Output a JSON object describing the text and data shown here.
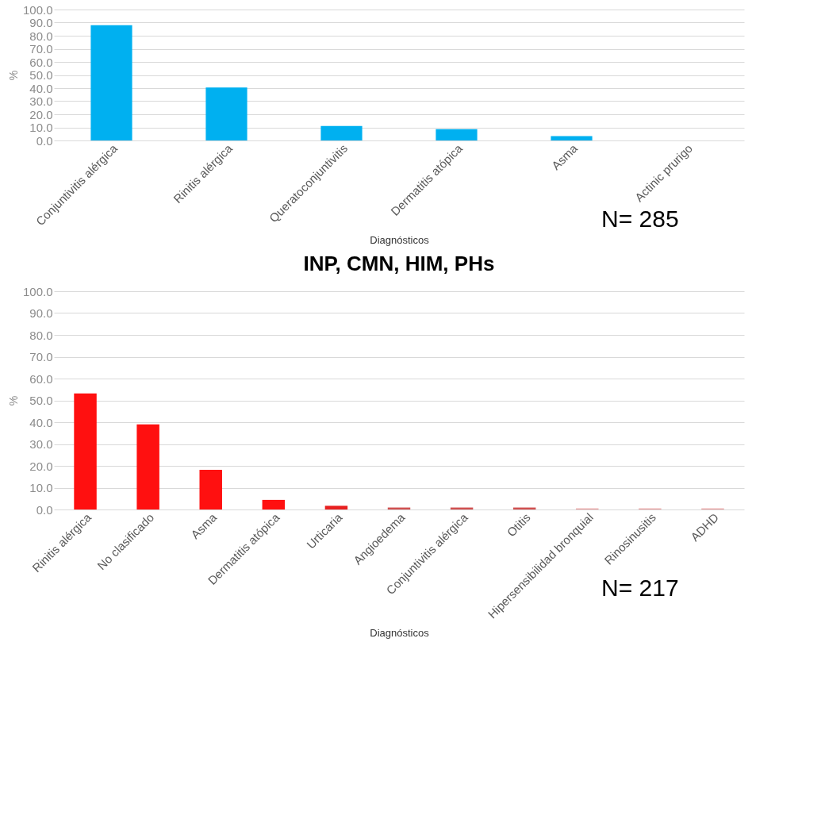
{
  "chart_data": [
    {
      "type": "bar",
      "xlabel": "Diagnósticos",
      "ylabel": "%",
      "categories": [
        "Conjuntivitis alérgica",
        "Rinitis alérgica",
        "Queratoconjuntivitis",
        "Dermatitis atópica",
        "Asma",
        "Actinic prurigo"
      ],
      "values": [
        88,
        40.5,
        11,
        8.7,
        3.3,
        0
      ],
      "color": "#00b0f0",
      "ylim": [
        0,
        100
      ],
      "yticks": [
        {
          "value": 0,
          "label": "0.0"
        },
        {
          "value": 10,
          "label": "10.0"
        },
        {
          "value": 20,
          "label": "20.0"
        },
        {
          "value": 30,
          "label": "30.0"
        },
        {
          "value": 40,
          "label": "40.0"
        },
        {
          "value": 50,
          "label": "50.0"
        },
        {
          "value": 60,
          "label": "60.0"
        },
        {
          "value": 70,
          "label": "70.0"
        },
        {
          "value": 80,
          "label": "80.0"
        },
        {
          "value": 90,
          "label": "90.0"
        },
        {
          "value": 100,
          "label": "100.0"
        }
      ],
      "grid": "y",
      "annotations": [
        "N= 285"
      ]
    },
    {
      "type": "bar",
      "title": "INP, CMN, HIM, PHs",
      "xlabel": "Diagnósticos",
      "ylabel": "%",
      "categories": [
        "Rinitis alérgica",
        "No clasificado",
        "Asma",
        "Dermatitis atópica",
        "Urticaria",
        "Angioedema",
        "Conjuntivitis alérgica",
        "Otitis",
        "Hipersensibilidad bronquial",
        "Rinosinusitis",
        "ADHD"
      ],
      "values": [
        53.2,
        39,
        18.2,
        4.4,
        1.7,
        0.9,
        0.9,
        0.9,
        0.5,
        0.5,
        0.5
      ],
      "colors": [
        "#ff1010",
        "#ff1010",
        "#ff1010",
        "#ff1010",
        "#e82020",
        "#d05050",
        "#d05050",
        "#d05050",
        "#eaa0a0",
        "#eaa0a0",
        "#eaa0a0"
      ],
      "ylim": [
        0,
        100
      ],
      "yticks": [
        {
          "value": 0,
          "label": "0.0"
        },
        {
          "value": 10,
          "label": "10.0"
        },
        {
          "value": 20,
          "label": "20.0"
        },
        {
          "value": 30,
          "label": "30.0"
        },
        {
          "value": 40,
          "label": "40.0"
        },
        {
          "value": 50,
          "label": "50.0"
        },
        {
          "value": 60,
          "label": "60.0"
        },
        {
          "value": 70,
          "label": "70.0"
        },
        {
          "value": 80,
          "label": "80.0"
        },
        {
          "value": 90,
          "label": "90.0"
        },
        {
          "value": 100,
          "label": "100.0"
        }
      ],
      "grid": "y",
      "annotations": [
        "N= 217"
      ]
    }
  ]
}
